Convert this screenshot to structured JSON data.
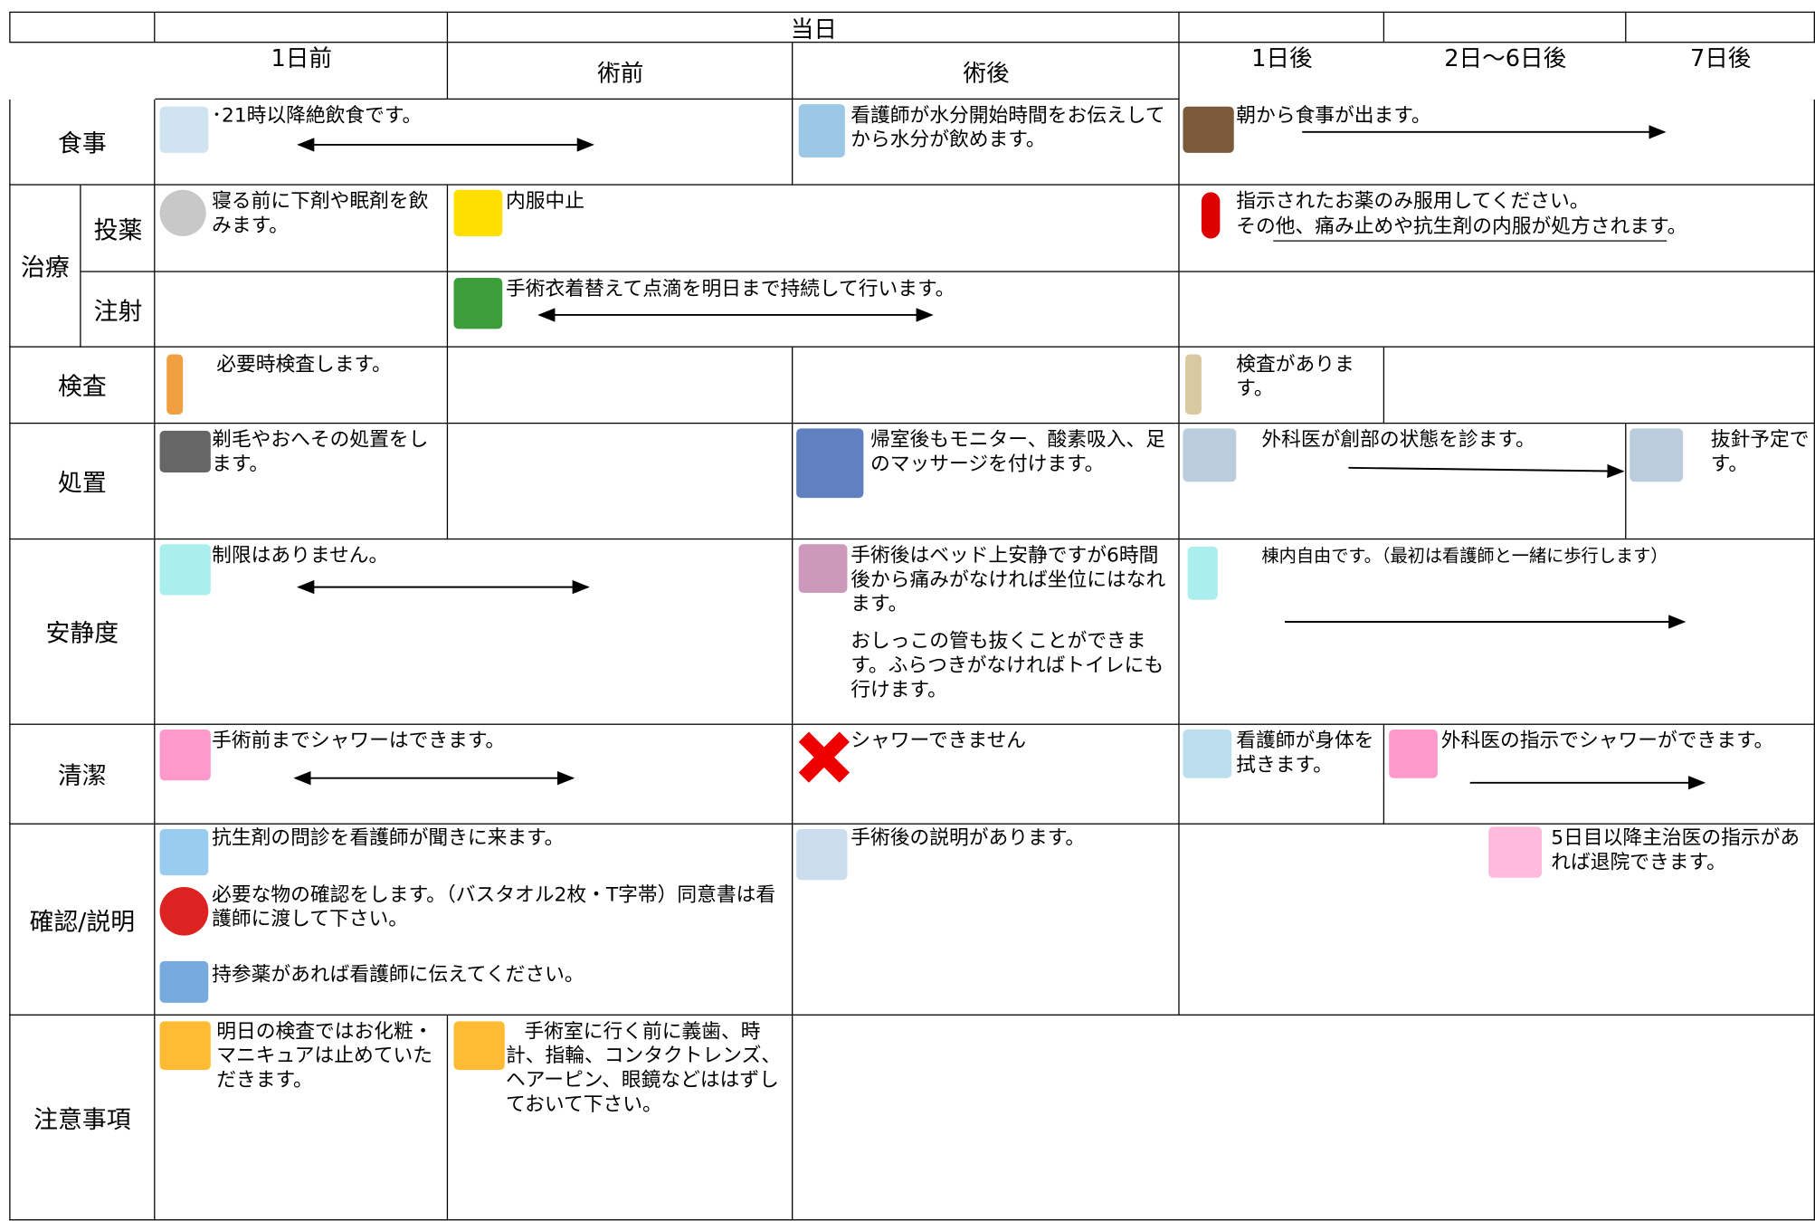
{
  "header": {
    "group": "当日",
    "columns": [
      "1日前",
      "術前",
      "術後",
      "1日後",
      "2日～6日後",
      "7日後"
    ]
  },
  "rows": [
    {
      "label": "食事",
      "notes": [
        "･21時以降絶飲食です。",
        "看護師が水分開始時間をお伝えしてから水分が飲めます。",
        "朝から食事が出ます。"
      ]
    },
    {
      "label": "治療",
      "sub": [
        {
          "label": "投薬",
          "notes": [
            "寝る前に下剤や眠剤を飲みます。",
            "内服中止",
            "指示されたお薬のみ服用してください。",
            "その他、痛み止めや抗生剤の内服が処方されます。"
          ]
        },
        {
          "label": "注射",
          "notes": [
            "手術衣着替えて点滴を明日まで持続して行います。"
          ]
        }
      ]
    },
    {
      "label": "検査",
      "notes": [
        "必要時検査します。",
        "検査があります。"
      ]
    },
    {
      "label": "処置",
      "notes": [
        "剃毛やおへその処置をします。",
        "帰室後もモニター、酸素吸入、足のマッサージを付けます。",
        "外科医が創部の状態を診ます。",
        "抜針予定です。"
      ]
    },
    {
      "label": "安静度",
      "notes": [
        "制限はありません。",
        "手術後はベッド上安静ですが6時間後から痛みがなければ坐位にはなれます。",
        "おしっこの管も抜くことができます。ふらつきがなければトイレにも行けます。",
        "棟内自由です。（最初は看護師と一緒に歩行します）"
      ]
    },
    {
      "label": "清潔",
      "notes": [
        "手術前までシャワーはできます。",
        "シャワーできません",
        "看護師が身体を拭きます。",
        "外科医の指示でシャワーができます。"
      ]
    },
    {
      "label": "確認/説明",
      "notes": [
        "抗生剤の問診を看護師が聞きに来ます。",
        "必要な物の確認をします。（バスタオル2枚・T字帯）同意書は看護師に渡して下さい。",
        "持参薬があれば看護師に伝えてください。",
        "手術後の説明があります。",
        "5日目以降主治医の指示があれば退院できます。"
      ]
    },
    {
      "label": "注意事項",
      "notes": [
        "明日の検査ではお化粧・マニキュアは止めていただきます。",
        "手術室に行く前に義歯、時計、指輪、コンタクトレンズ、ヘアーピン、眼鏡などははずしておいて下さい。"
      ]
    }
  ]
}
